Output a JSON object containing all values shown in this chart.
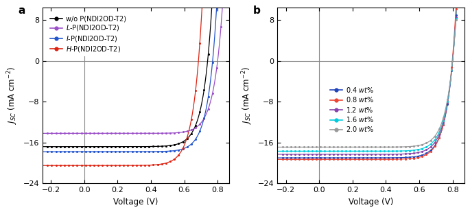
{
  "panel_a": {
    "label": "a",
    "curves": [
      {
        "label": "w/o P(NDI2OD-T2)",
        "color": "#000000",
        "jsc": -16.8,
        "voc": 0.74,
        "n": 2.0
      },
      {
        "label": "L-P(NDI2OD-T2)",
        "color": "#9B4FC8",
        "jsc": -14.2,
        "voc": 0.8,
        "n": 2.0
      },
      {
        "label": "I-P(NDI2OD-T2)",
        "color": "#2255CC",
        "jsc": -17.8,
        "voc": 0.77,
        "n": 2.0
      },
      {
        "label": "H-P(NDI2OD-T2)",
        "color": "#DD2211",
        "jsc": -20.5,
        "voc": 0.685,
        "n": 2.0
      }
    ],
    "legend_labels": [
      "w/o P(NDI2OD-T2)",
      "$\\it{L}$-P(NDI2OD-T2)",
      "$\\it{I}$-P(NDI2OD-T2)",
      "$\\it{H}$-P(NDI2OD-T2)"
    ],
    "xlabel": "Voltage (V)",
    "ylabel": "$J_{SC}$ (mA cm$^{-2}$)",
    "xlim": [
      -0.25,
      0.87
    ],
    "ylim": [
      -24,
      10.5
    ],
    "xticks": [
      -0.2,
      0.0,
      0.2,
      0.4,
      0.6,
      0.8
    ],
    "yticks": [
      -24,
      -16,
      -8,
      0,
      8
    ]
  },
  "panel_b": {
    "label": "b",
    "curves": [
      {
        "label": "0.4 $\\it{wt}$%",
        "color": "#2244BB",
        "jsc": -19.0,
        "voc": 0.8,
        "n": 2.0
      },
      {
        "label": "0.8 $\\it{wt}$%",
        "color": "#EE4433",
        "jsc": -19.3,
        "voc": 0.798,
        "n": 2.0
      },
      {
        "label": "1.2 $\\it{wt}$%",
        "color": "#8844AA",
        "jsc": -18.3,
        "voc": 0.8,
        "n": 2.0
      },
      {
        "label": "1.6 $\\it{wt}$%",
        "color": "#00CCDD",
        "jsc": -17.7,
        "voc": 0.8,
        "n": 2.0
      },
      {
        "label": "2.0 $\\it{wt}$%",
        "color": "#999999",
        "jsc": -16.9,
        "voc": 0.8,
        "n": 2.0
      }
    ],
    "xlabel": "Voltage (V)",
    "ylabel": "$J_{SC}$ (mA cm$^{-2}$)",
    "xlim": [
      -0.25,
      0.87
    ],
    "ylim": [
      -24,
      10.5
    ],
    "xticks": [
      -0.2,
      0.0,
      0.2,
      0.4,
      0.6,
      0.8
    ],
    "yticks": [
      -24,
      -16,
      -8,
      0,
      8
    ]
  }
}
